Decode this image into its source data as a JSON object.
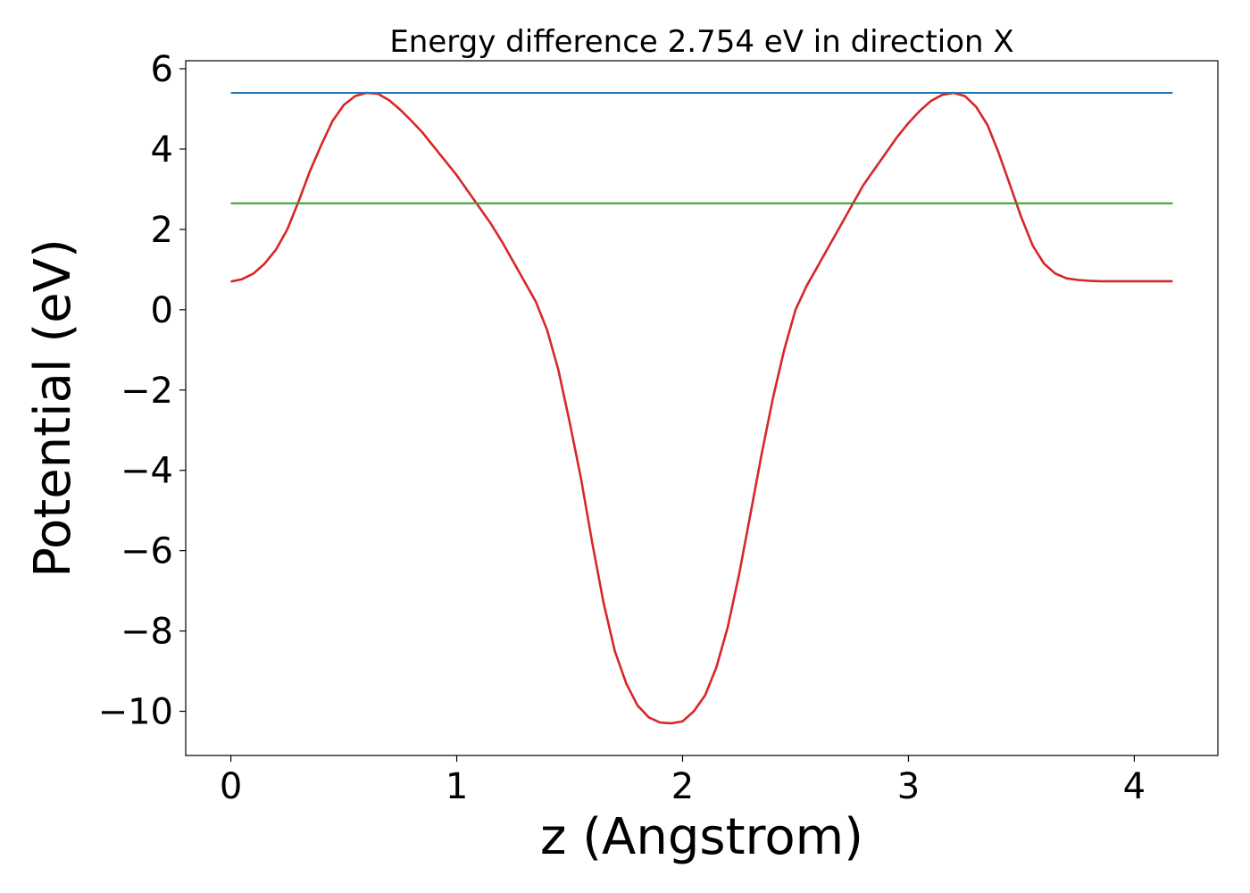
{
  "chart_data": {
    "type": "line",
    "title": "Energy difference 2.754 eV in direction X",
    "xlabel": "z (Angstrom)",
    "ylabel": "Potential (eV)",
    "xlim": [
      -0.2,
      4.37
    ],
    "ylim": [
      -11.1,
      6.2
    ],
    "xticks": [
      0,
      1,
      2,
      3,
      4
    ],
    "xtick_labels": [
      "0",
      "1",
      "2",
      "3",
      "4"
    ],
    "yticks": [
      -10,
      -8,
      -6,
      -4,
      -2,
      0,
      2,
      4,
      6
    ],
    "ytick_labels": [
      "−10",
      "−8",
      "−6",
      "−4",
      "−2",
      "0",
      "2",
      "4",
      "6"
    ],
    "grid": false,
    "series": [
      {
        "color": "#d62728",
        "x": [
          0.0,
          0.05,
          0.1,
          0.15,
          0.2,
          0.25,
          0.3,
          0.35,
          0.4,
          0.45,
          0.5,
          0.55,
          0.6,
          0.65,
          0.7,
          0.75,
          0.8,
          0.85,
          0.9,
          0.95,
          1.0,
          1.05,
          1.1,
          1.15,
          1.2,
          1.25,
          1.3,
          1.35,
          1.4,
          1.45,
          1.5,
          1.55,
          1.6,
          1.65,
          1.7,
          1.75,
          1.8,
          1.85,
          1.9,
          1.95,
          2.0,
          2.05,
          2.1,
          2.15,
          2.2,
          2.25,
          2.3,
          2.35,
          2.4,
          2.45,
          2.5,
          2.55,
          2.6,
          2.65,
          2.7,
          2.75,
          2.8,
          2.85,
          2.9,
          2.95,
          3.0,
          3.05,
          3.1,
          3.15,
          3.2,
          3.25,
          3.3,
          3.35,
          3.4,
          3.45,
          3.5,
          3.55,
          3.6,
          3.65,
          3.7,
          3.75,
          3.8,
          3.85,
          3.9,
          3.95,
          4.0,
          4.05,
          4.1,
          4.17
        ],
        "y": [
          0.7,
          0.76,
          0.9,
          1.15,
          1.5,
          2.0,
          2.7,
          3.45,
          4.1,
          4.7,
          5.1,
          5.32,
          5.4,
          5.38,
          5.22,
          4.98,
          4.7,
          4.4,
          4.05,
          3.7,
          3.35,
          2.95,
          2.55,
          2.15,
          1.7,
          1.2,
          0.7,
          0.2,
          -0.5,
          -1.5,
          -2.8,
          -4.2,
          -5.8,
          -7.3,
          -8.5,
          -9.3,
          -9.85,
          -10.15,
          -10.28,
          -10.3,
          -10.25,
          -10.0,
          -9.6,
          -8.9,
          -7.9,
          -6.6,
          -5.1,
          -3.6,
          -2.2,
          -1.0,
          0.0,
          0.6,
          1.1,
          1.6,
          2.1,
          2.6,
          3.1,
          3.5,
          3.9,
          4.3,
          4.65,
          4.95,
          5.2,
          5.35,
          5.4,
          5.32,
          5.05,
          4.6,
          3.9,
          3.1,
          2.3,
          1.6,
          1.15,
          0.9,
          0.78,
          0.74,
          0.72,
          0.71,
          0.71,
          0.71,
          0.71,
          0.71,
          0.71,
          0.71
        ]
      },
      {
        "color": "#1f77b4",
        "x": [
          0.0,
          4.17
        ],
        "y": [
          5.4,
          5.4
        ]
      },
      {
        "color": "#2ca02c",
        "x": [
          0.0,
          4.17
        ],
        "y": [
          2.65,
          2.65
        ]
      }
    ]
  }
}
